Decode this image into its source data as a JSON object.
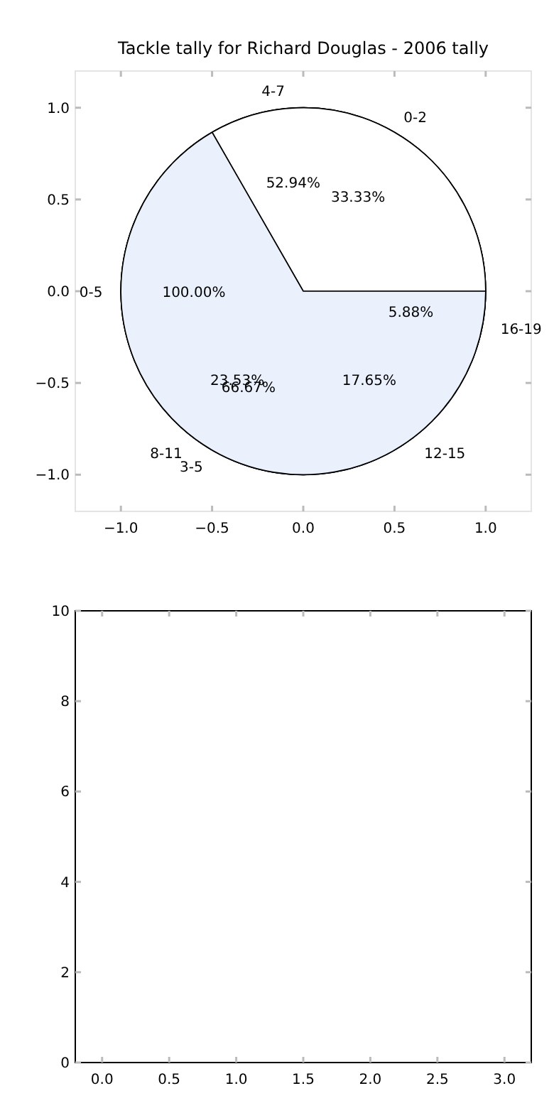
{
  "chart_data": [
    {
      "type": "scatter",
      "title": "Tackle tally for Richard Douglas - 2006 tally",
      "xlim": [
        -1.25,
        1.25
      ],
      "ylim": [
        -1.2,
        1.2
      ],
      "xticks": [
        {
          "value": -1,
          "label": "−1.0"
        },
        {
          "value": -0.5,
          "label": "−0.5"
        },
        {
          "value": 0,
          "label": "0.0"
        },
        {
          "value": 0.5,
          "label": "0.5"
        },
        {
          "value": 1,
          "label": "1.0"
        }
      ],
      "yticks": [
        {
          "value": -1,
          "label": "−1.0"
        },
        {
          "value": -0.5,
          "label": "−0.5"
        },
        {
          "value": 0,
          "label": "0.0"
        },
        {
          "value": 0.5,
          "label": "0.5"
        },
        {
          "value": 1,
          "label": "1.0"
        }
      ]
    },
    {
      "type": "pie",
      "categories": [
        "0-2",
        "3-5"
      ],
      "values": [
        33.33,
        66.67
      ],
      "colors": [
        "#ffffff",
        "#eaf1fd"
      ],
      "value_labels": [
        "33.33%",
        "66.67%"
      ]
    },
    {
      "type": "pie",
      "categories": [
        "4-7",
        "8-11",
        "12-15",
        "16-19"
      ],
      "values": [
        52.94,
        23.53,
        17.65,
        5.88
      ],
      "colors": [
        "#ffffff",
        "#eaf1fd",
        "#eaf1fd",
        "#b9d7f9"
      ],
      "value_labels": [
        "52.94%",
        "23.53%",
        "17.65%",
        "5.88%"
      ]
    },
    {
      "type": "pie",
      "categories": [
        "0-5"
      ],
      "values": [
        100
      ],
      "colors": [
        "#eaf1fd"
      ],
      "value_labels": [
        "100.00%"
      ]
    },
    {
      "type": "scatter",
      "xlim": [
        -0.2,
        3.2
      ],
      "ylim": [
        0,
        10
      ],
      "xticks": [
        {
          "value": 0,
          "label": "0.0"
        },
        {
          "value": 0.5,
          "label": "0.5"
        },
        {
          "value": 1,
          "label": "1.0"
        },
        {
          "value": 1.5,
          "label": "1.5"
        },
        {
          "value": 2,
          "label": "2.0"
        },
        {
          "value": 2.5,
          "label": "2.5"
        },
        {
          "value": 3,
          "label": "3.0"
        }
      ],
      "yticks": [
        0,
        2,
        4,
        6,
        8,
        10
      ]
    }
  ]
}
